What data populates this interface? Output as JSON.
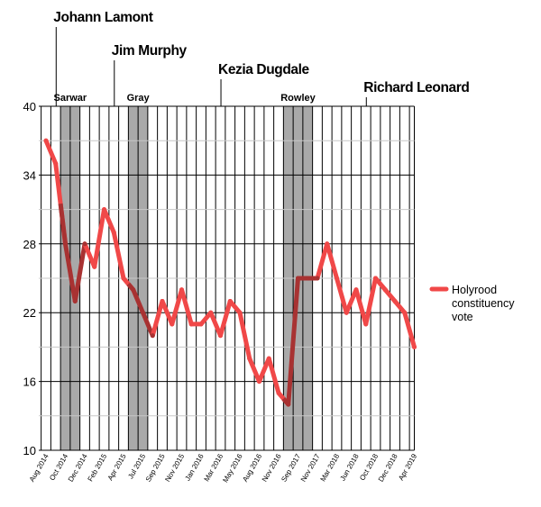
{
  "chart_data": {
    "type": "line",
    "ylim": [
      10,
      40
    ],
    "yticks": [
      10,
      16,
      22,
      28,
      34,
      40
    ],
    "x_tick_labels": [
      "Aug 2014",
      "Oct 2014",
      "Dec 2014",
      "Feb 2015",
      "Apr 2015",
      "Jul 2015",
      "Sep 2015",
      "Nov 2015",
      "Jan 2016",
      "Mar 2016",
      "May 2016",
      "Aug 2016",
      "Nov 2016",
      "Sep 2017",
      "Nov 2017",
      "Mar 2018",
      "Jun 2018",
      "Oct 2018",
      "Dec 2018",
      "Apr 2019"
    ],
    "series": [
      {
        "name": "Holyrood constituency vote",
        "color": "#f04848",
        "shaded_color": "#a83232",
        "values": [
          37,
          35,
          28,
          23,
          28,
          26,
          31,
          29,
          25,
          24,
          22,
          20,
          23,
          21,
          24,
          21,
          21,
          22,
          20,
          23,
          22,
          18,
          16,
          18,
          15,
          14,
          25,
          25,
          25,
          28,
          25,
          22,
          24,
          21,
          25,
          24,
          23,
          22,
          19
        ]
      }
    ],
    "leaders": [
      {
        "name": "Johann Lamont",
        "index": 1
      },
      {
        "name": "Jim Murphy",
        "index": 7
      },
      {
        "name": "Kezia Dugdale",
        "index": 18
      },
      {
        "name": "Richard Leonard",
        "index": 33
      }
    ],
    "interim_periods": [
      {
        "name": "Sarwar",
        "start": 2,
        "end": 4
      },
      {
        "name": "Gray",
        "start": 9,
        "end": 11
      },
      {
        "name": "Rowley",
        "start": 25,
        "end": 28
      }
    ],
    "grid": true,
    "legend_position": "right"
  }
}
